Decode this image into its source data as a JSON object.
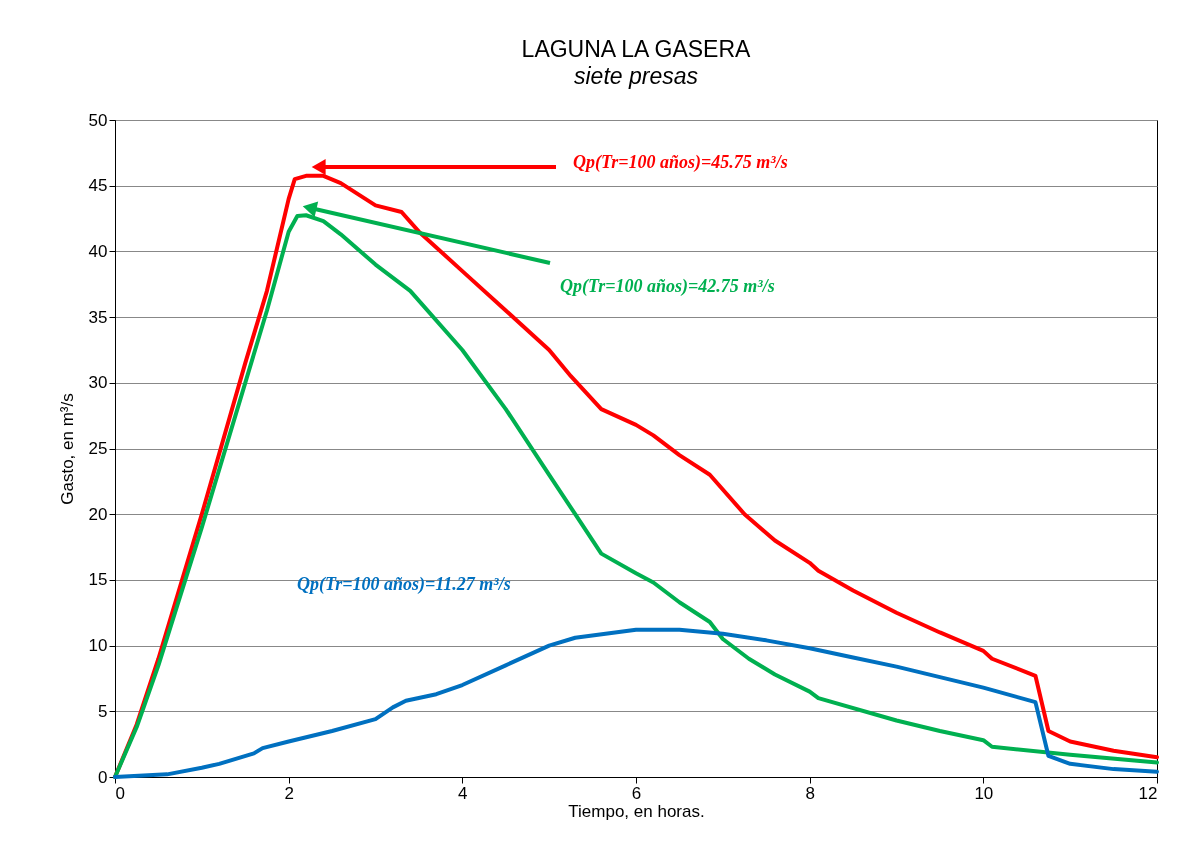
{
  "chart_data": {
    "type": "line",
    "title": "LAGUNA LA GASERA",
    "subtitle": "siete presas",
    "xlabel": "Tiempo, en horas.",
    "ylabel": "Gasto,  en  m³/s",
    "xlim": [
      0,
      12
    ],
    "xticks": [
      0,
      2,
      4,
      6,
      8,
      10,
      12
    ],
    "ylim": [
      0,
      50
    ],
    "yticks": [
      0,
      5,
      10,
      15,
      20,
      25,
      30,
      35,
      40,
      45,
      50
    ],
    "grid": "y",
    "legend": false,
    "marker": "none",
    "line_style": "solid",
    "series": [
      {
        "color": "#ff0000",
        "x": [
          0,
          0.25,
          0.5,
          1,
          1.5,
          1.75,
          2,
          2.07,
          2.2,
          2.4,
          2.6,
          3,
          3.3,
          3.5,
          4,
          4.5,
          5,
          5.25,
          5.6,
          6,
          6.2,
          6.5,
          6.85,
          7.25,
          7.6,
          8,
          8.1,
          8.5,
          9,
          9.5,
          10,
          10.1,
          10.6,
          10.75,
          11,
          11.5,
          12
        ],
        "values": [
          0,
          4,
          9,
          20,
          31.5,
          37,
          44,
          45.5,
          45.75,
          45.75,
          45.2,
          43.5,
          43,
          41.5,
          38.5,
          35.5,
          32.5,
          30.5,
          28,
          26.8,
          26,
          24.5,
          23,
          20,
          18,
          16.3,
          15.7,
          14.2,
          12.5,
          11,
          9.6,
          9,
          7.7,
          3.5,
          2.7,
          2,
          1.5
        ]
      },
      {
        "color": "#00b050",
        "x": [
          0,
          0.25,
          0.5,
          1,
          1.5,
          1.75,
          2,
          2.1,
          2.2,
          2.4,
          2.6,
          3,
          3.4,
          4,
          4.5,
          5,
          5.3,
          5.6,
          6,
          6.2,
          6.5,
          6.85,
          7,
          7.3,
          7.6,
          8,
          8.1,
          9,
          9.5,
          10,
          10.1,
          11,
          12
        ],
        "values": [
          0,
          3.8,
          8.5,
          19,
          30,
          35.5,
          41.5,
          42.7,
          42.75,
          42.3,
          41.3,
          39,
          37,
          32.5,
          28,
          23,
          20,
          17,
          15.5,
          14.8,
          13.3,
          11.8,
          10.5,
          9,
          7.8,
          6.5,
          6,
          4.3,
          3.5,
          2.8,
          2.3,
          1.7,
          1.1
        ]
      },
      {
        "color": "#0070c0",
        "x": [
          0,
          0.6,
          1,
          1.2,
          1.6,
          1.7,
          2,
          2.5,
          3,
          3.2,
          3.35,
          3.7,
          4,
          4.5,
          5,
          5.3,
          6,
          6.5,
          7,
          7.5,
          8,
          8.5,
          9,
          9.5,
          10,
          10.6,
          10.75,
          11,
          11.5,
          12
        ],
        "values": [
          0,
          0.2,
          0.7,
          1,
          1.8,
          2.2,
          2.7,
          3.5,
          4.4,
          5.3,
          5.8,
          6.3,
          7,
          8.5,
          10,
          10.6,
          11.2,
          11.2,
          10.9,
          10.4,
          9.8,
          9.1,
          8.4,
          7.6,
          6.8,
          5.7,
          1.6,
          1,
          0.6,
          0.4
        ]
      }
    ],
    "annotations": [
      "Qp(Tr=100 años)=45.75 m³/s",
      "Qp(Tr=100 años)=42.75 m³/s",
      "Qp(Tr=100 años)=11.27 m³/s"
    ]
  }
}
